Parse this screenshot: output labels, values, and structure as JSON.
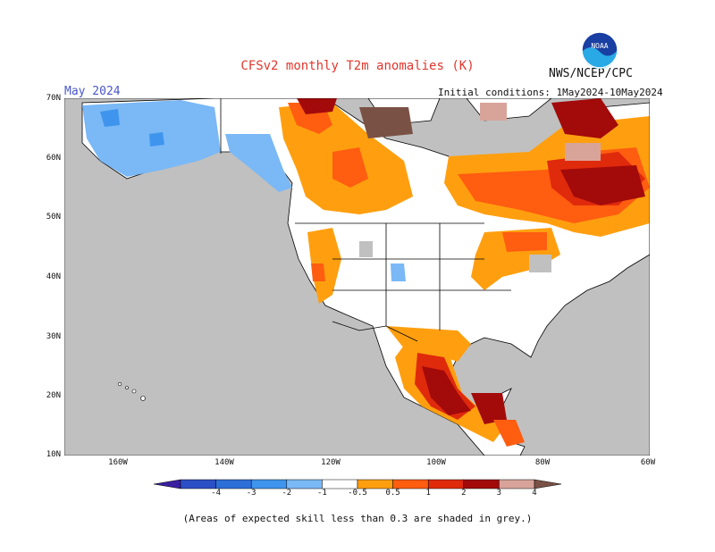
{
  "header": {
    "title": "CFSv2 monthly T2m anomalies (K)",
    "agency": "NWS/NCEP/CPC",
    "valid_month": "May 2024",
    "initial_conditions": "Initial conditions: 1May2024-10May2024",
    "logo_text": "NOAA"
  },
  "map": {
    "lat_labels": [
      "70N",
      "60N",
      "50N",
      "40N",
      "30N",
      "20N",
      "10N"
    ],
    "lon_labels": [
      "160W",
      "140W",
      "120W",
      "100W",
      "80W",
      "60W"
    ],
    "colors": {
      "ocean_grey": "#c0c0c0",
      "land_white": "#ffffff"
    }
  },
  "colorbar": {
    "ticks": [
      "-4",
      "-3",
      "-2",
      "-1",
      "-0.5",
      "0.5",
      "1",
      "2",
      "3",
      "4"
    ],
    "colors": [
      "#3a1fa0",
      "#2b4fc4",
      "#2d6fd9",
      "#3f95ee",
      "#7ab8f6",
      "#ffffff",
      "#ff9f0f",
      "#ff5d10",
      "#e02a0c",
      "#a30a0a",
      "#d8a49a",
      "#7a5145"
    ]
  },
  "footnote": "(Areas of expected skill less than 0.3 are shaded in grey.)"
}
